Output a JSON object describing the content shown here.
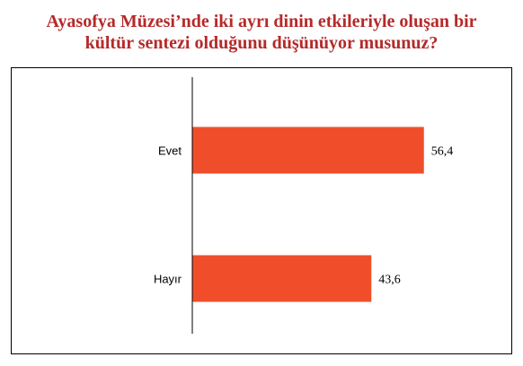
{
  "chart_data": {
    "type": "bar",
    "orientation": "horizontal",
    "title": [
      "Ayasofya Müzesi’nde iki ayrı dinin etkileriyle oluşan bir",
      "kültür sentezi olduğunu düşünüyor musunuz?"
    ],
    "categories": [
      "Evet",
      "Hayır"
    ],
    "values": [
      56.4,
      43.6
    ],
    "data_labels": [
      "56,4",
      "43,6"
    ],
    "xlim": [
      0,
      100
    ],
    "grid": false,
    "legend": "none",
    "colors": {
      "bar": "#f04e2b",
      "title": "#b52a2a",
      "text": "#000000"
    }
  }
}
